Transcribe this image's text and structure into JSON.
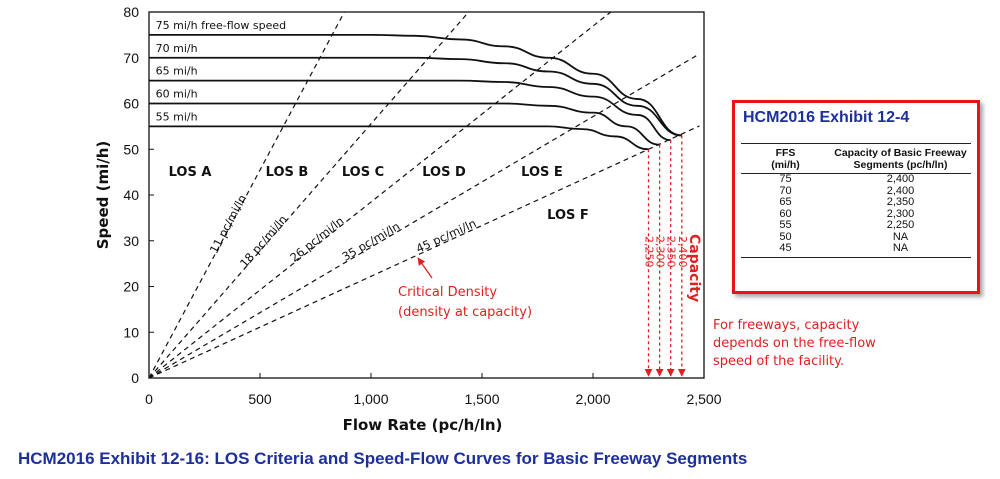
{
  "chart_data": {
    "type": "line",
    "xlabel": "Flow Rate (pc/h/ln)",
    "ylabel": "Speed (mi/h)",
    "xlim": [
      0,
      2500
    ],
    "ylim": [
      0,
      80
    ],
    "x_ticks": [
      "0",
      "500",
      "1,000",
      "1,500",
      "2,000",
      "2,500"
    ],
    "y_ticks": [
      "0",
      "10",
      "20",
      "30",
      "40",
      "50",
      "60",
      "70",
      "80"
    ],
    "grid": false,
    "series": [
      {
        "name": "75 mi/h free-flow speed",
        "ffs": 75,
        "capacity": 2400,
        "speed_at_capacity": 53,
        "points": [
          [
            0,
            75
          ],
          [
            1000,
            75
          ],
          [
            1200,
            74.8
          ],
          [
            1400,
            74
          ],
          [
            1600,
            72.5
          ],
          [
            1800,
            70
          ],
          [
            2000,
            66.5
          ],
          [
            2200,
            61
          ],
          [
            2400,
            53
          ]
        ]
      },
      {
        "name": "70 mi/h",
        "ffs": 70,
        "capacity": 2400,
        "speed_at_capacity": 53,
        "points": [
          [
            0,
            70
          ],
          [
            1200,
            70
          ],
          [
            1400,
            69.7
          ],
          [
            1600,
            68.8
          ],
          [
            1800,
            67
          ],
          [
            2000,
            64.3
          ],
          [
            2200,
            59.5
          ],
          [
            2400,
            53
          ]
        ]
      },
      {
        "name": "65 mi/h",
        "ffs": 65,
        "capacity": 2350,
        "speed_at_capacity": 52,
        "points": [
          [
            0,
            65
          ],
          [
            1400,
            65
          ],
          [
            1600,
            64.7
          ],
          [
            1800,
            63.6
          ],
          [
            2000,
            61.5
          ],
          [
            2200,
            57.5
          ],
          [
            2350,
            52
          ]
        ]
      },
      {
        "name": "60 mi/h",
        "ffs": 60,
        "capacity": 2300,
        "speed_at_capacity": 51,
        "points": [
          [
            0,
            60
          ],
          [
            1600,
            60
          ],
          [
            1800,
            59.5
          ],
          [
            2000,
            58
          ],
          [
            2150,
            55
          ],
          [
            2300,
            51
          ]
        ]
      },
      {
        "name": "55 mi/h",
        "ffs": 55,
        "capacity": 2250,
        "speed_at_capacity": 50,
        "points": [
          [
            0,
            55
          ],
          [
            1800,
            55
          ],
          [
            1950,
            54.4
          ],
          [
            2100,
            52.8
          ],
          [
            2250,
            50
          ]
        ]
      }
    ],
    "density_lines": [
      {
        "label": "11 pc/mi/ln",
        "density": 11
      },
      {
        "label": "18 pc/mi/ln",
        "density": 18
      },
      {
        "label": "26 pc/mi/ln",
        "density": 26
      },
      {
        "label": "35 pc/mi/ln",
        "density": 35
      },
      {
        "label": "45 pc/mi/ln",
        "density": 45
      }
    ],
    "los_regions": [
      "LOS A",
      "LOS B",
      "LOS C",
      "LOS D",
      "LOS E",
      "LOS F"
    ],
    "capacity_markers": {
      "title": "Capacity",
      "values": [
        2250,
        2300,
        2350,
        2400
      ],
      "labels": [
        "2,250",
        "2,300",
        "2,350",
        "2,400"
      ],
      "color": "#e02020"
    },
    "annotation": {
      "line1": "Critical Density",
      "line2": "(density at capacity)",
      "color": "#e02020"
    }
  },
  "caption": "HCM2016 Exhibit 12-16: LOS Criteria and Speed-Flow Curves for Basic Freeway Segments",
  "inset": {
    "title": "HCM2016 Exhibit 12-4",
    "col1_header_1": "FFS",
    "col1_header_2": "(mi/h)",
    "col2_header_1": "Capacity of Basic Freeway",
    "col2_header_2": "Segments (pc/h/ln)",
    "rows": [
      {
        "ffs": "75",
        "capacity": "2,400"
      },
      {
        "ffs": "70",
        "capacity": "2,400"
      },
      {
        "ffs": "65",
        "capacity": "2,350"
      },
      {
        "ffs": "60",
        "capacity": "2,300"
      },
      {
        "ffs": "55",
        "capacity": "2,250"
      },
      {
        "ffs": "50",
        "capacity": "NA"
      },
      {
        "ffs": "45",
        "capacity": "NA"
      }
    ],
    "border_color": "#e8141a",
    "title_color": "#1d2f9c"
  },
  "note": {
    "line1": "For freeways, capacity",
    "line2": "depends on the free-flow",
    "line3": "speed of the facility."
  },
  "colors": {
    "caption": "#1d2f9c",
    "accent_red": "#e02020",
    "curve": "#111111"
  }
}
